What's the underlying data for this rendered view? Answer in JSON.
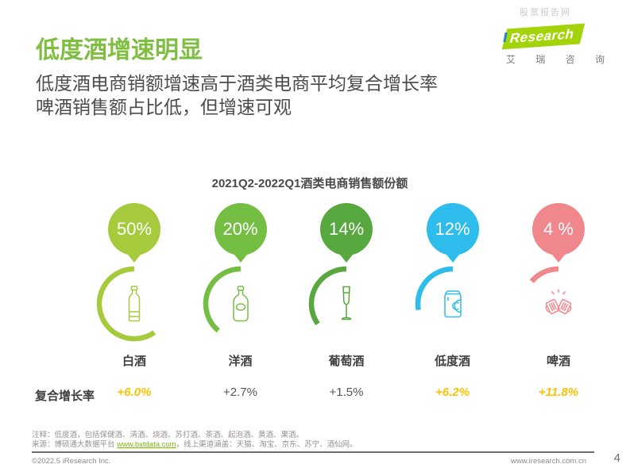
{
  "watermark": "股票报告网",
  "header": {
    "title": "低度酒增速明显",
    "subtitle_line1": "低度酒电商销额增速高于酒类电商平均复合增长率",
    "subtitle_line2": "啤酒销售额占比低，但增速可观",
    "logo": {
      "i": "i",
      "research": "Research",
      "cn": "艾 瑞 咨 询"
    }
  },
  "chart_data": {
    "type": "pie",
    "title": "2021Q2-2022Q1酒类电商销售额份额",
    "categories": [
      "白酒",
      "洋酒",
      "葡萄酒",
      "低度酒",
      "啤酒"
    ],
    "values": [
      50,
      20,
      14,
      12,
      4
    ],
    "growth_label": "复合增长率",
    "growth_values": [
      "+6.0%",
      "+2.7%",
      "+1.5%",
      "+6.2%",
      "+11.8%"
    ],
    "highlight_color": "#FFC000",
    "items": [
      {
        "category": "白酒",
        "share_label": "50%",
        "share": 50,
        "growth": "+6.0%",
        "highlight": true,
        "color": "#a5cb3c",
        "arc_deg": 215,
        "icon": "liquor-bottle"
      },
      {
        "category": "洋酒",
        "share_label": "20%",
        "share": 20,
        "growth": "+2.7%",
        "highlight": false,
        "color": "#75be44",
        "arc_deg": 140,
        "icon": "liqueur-bottle"
      },
      {
        "category": "葡萄酒",
        "share_label": "14%",
        "share": 14,
        "growth": "+1.5%",
        "highlight": false,
        "color": "#57a83f",
        "arc_deg": 125,
        "icon": "wine-glass"
      },
      {
        "category": "低度酒",
        "share_label": "12%",
        "share": 12,
        "growth": "+6.2%",
        "highlight": true,
        "color": "#2ebcec",
        "arc_deg": 100,
        "icon": "beverage-can"
      },
      {
        "category": "啤酒",
        "share_label": "4 %",
        "share": 4,
        "growth": "+11.8%",
        "highlight": true,
        "color": "#f0878d",
        "arc_deg": 50,
        "icon": "beer-mugs"
      }
    ]
  },
  "footer": {
    "note1": "注释：低度酒，包括保健酒、清酒、烧酒、苏打酒、茶酒、起泡酒、黄酒、果酒。",
    "source_prefix": "来源：博硕通大数据平台 ",
    "source_link": "www.bxtdata.com",
    "source_suffix": "，线上渠道涵盖：天猫、淘宝、京东、苏宁、酒仙网。",
    "copyright": "©2022.5 iResearch Inc.",
    "website": "www.iresearch.com.cn",
    "page_number": "4"
  }
}
